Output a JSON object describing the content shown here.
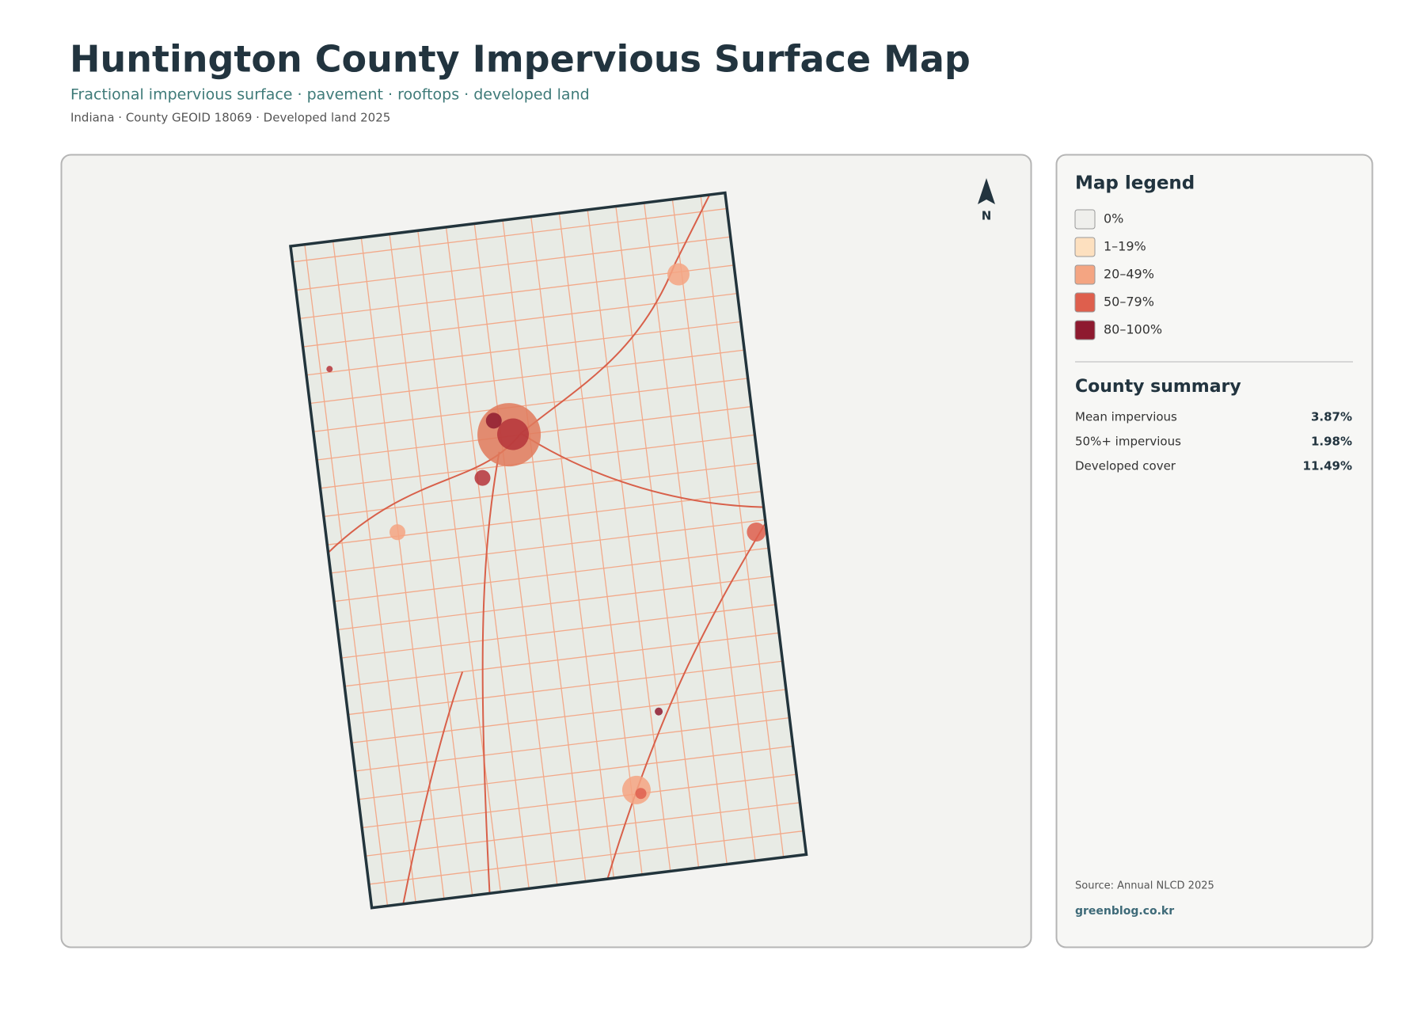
{
  "header": {
    "title": "Huntington County Impervious Surface Map",
    "subtitle": "Fractional impervious surface · pavement · rooftops · developed land",
    "meta": "Indiana · County GEOID 18069 · Developed land 2025"
  },
  "map": {
    "north_label": "N"
  },
  "legend": {
    "title": "Map legend",
    "items": [
      {
        "label": "0%",
        "color": "#efefec"
      },
      {
        "label": "1–19%",
        "color": "#fde0bf"
      },
      {
        "label": "20–49%",
        "color": "#f4a582"
      },
      {
        "label": "50–79%",
        "color": "#de5f4d"
      },
      {
        "label": "80–100%",
        "color": "#8e1a2f"
      }
    ]
  },
  "summary": {
    "title": "County summary",
    "rows": [
      {
        "label": "Mean impervious",
        "value": "3.87%"
      },
      {
        "label": "50%+ impervious",
        "value": "1.98%"
      },
      {
        "label": "Developed cover",
        "value": "11.49%"
      }
    ]
  },
  "footer": {
    "source": "Source: Annual NLCD 2025",
    "site": "greenblog.co.kr"
  }
}
